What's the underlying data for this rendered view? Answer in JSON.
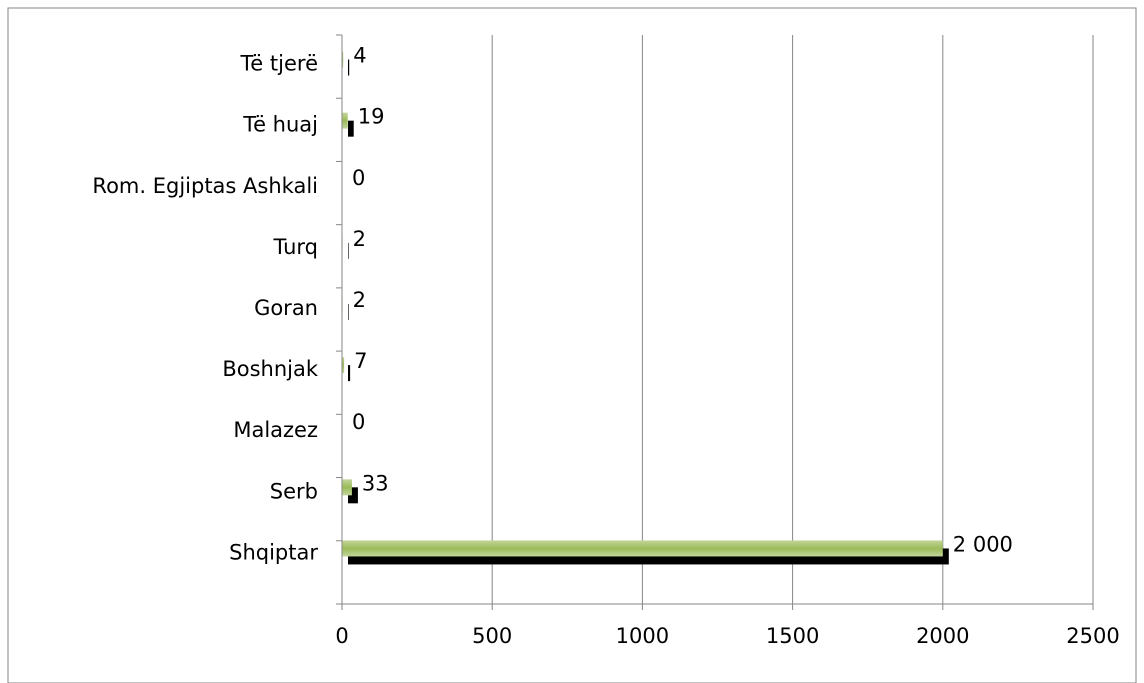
{
  "chart_data": {
    "type": "bar",
    "orientation": "horizontal",
    "categories": [
      "Shqiptar",
      "Serb",
      "Malazez",
      "Boshnjak",
      "Goran",
      "Turq",
      "Rom. Egjiptas Ashkali",
      "Të huaj",
      "Të tjerë"
    ],
    "values": [
      2000,
      33,
      0,
      7,
      2,
      2,
      0,
      19,
      4
    ],
    "value_labels": [
      "2 000",
      "33",
      "0",
      "7",
      "2",
      "2",
      "0",
      "19",
      "4"
    ],
    "color": "#9bbb59",
    "xlim": [
      0,
      2500
    ],
    "xticks": [
      0,
      500,
      1000,
      1500,
      2000,
      2500
    ],
    "grid": true
  }
}
